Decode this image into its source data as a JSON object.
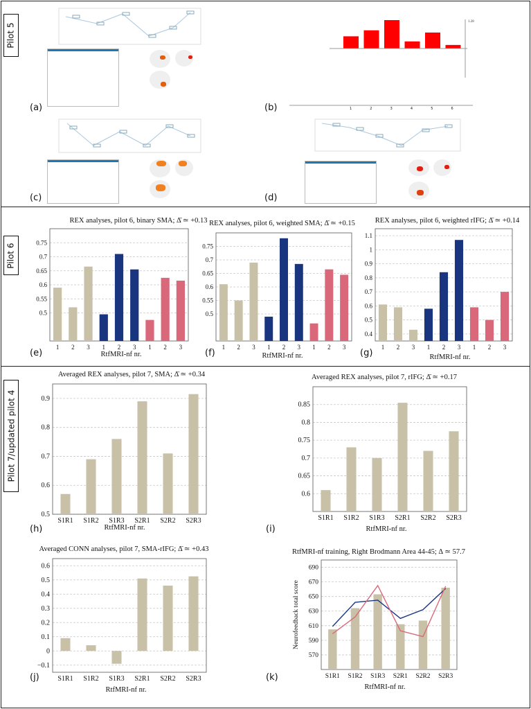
{
  "pilots": {
    "p5": "Pilot 5",
    "p6": "Pilot 6",
    "p7": "Pilot 7/updated pilot 4"
  },
  "letters": {
    "a": "(a)",
    "b": "(b)",
    "c": "(c)",
    "d": "(d)",
    "e": "(e)",
    "f": "(f)",
    "g": "(g)",
    "h": "(h)",
    "i": "(i)",
    "j": "(j)",
    "k": "(k)"
  },
  "colors": {
    "beige": "#c8c1a8",
    "navy": "#1a3580",
    "pink": "#d9687a",
    "red": "#ff0000",
    "grid": "#c8c8c8"
  },
  "chart_data": [
    {
      "id": "b",
      "type": "bar",
      "categories": [
        "1",
        "2",
        "3",
        "4",
        "5",
        "6"
      ],
      "values": [
        0.55,
        0.82,
        1.28,
        0.32,
        0.72,
        0.16
      ],
      "ylabel_tick": "1.28",
      "colors": [
        "red",
        "red",
        "red",
        "red",
        "red",
        "red"
      ]
    },
    {
      "id": "e",
      "type": "bar",
      "title": "REX analyses, pilot 6, binary SMA; Δ̄ ≃ +0.13",
      "xlabel": "RtfMRI-nf nr.",
      "categories": [
        "1",
        "2",
        "3",
        "1",
        "2",
        "3",
        "1",
        "2",
        "3"
      ],
      "values": [
        0.59,
        0.52,
        0.665,
        0.495,
        0.71,
        0.655,
        0.475,
        0.625,
        0.615
      ],
      "colors": [
        "beige",
        "beige",
        "beige",
        "navy",
        "navy",
        "navy",
        "pink",
        "pink",
        "pink"
      ],
      "ylim": [
        0.4,
        0.8
      ],
      "yticks": [
        0.5,
        0.55,
        0.6,
        0.65,
        0.7,
        0.75
      ],
      "ytick_labels": [
        "0.5",
        "0.55",
        "0.6",
        "0.65",
        "0.7",
        "0.75"
      ]
    },
    {
      "id": "f",
      "type": "bar",
      "title": "REX analyses, pilot 6, weighted SMA; Δ̄ ≃ +0.15",
      "xlabel": "RtfMRI-nf nr.",
      "categories": [
        "1",
        "2",
        "3",
        "1",
        "2",
        "3",
        "1",
        "2",
        "3"
      ],
      "values": [
        0.61,
        0.55,
        0.69,
        0.49,
        0.78,
        0.685,
        0.465,
        0.665,
        0.645
      ],
      "colors": [
        "beige",
        "beige",
        "beige",
        "navy",
        "navy",
        "navy",
        "pink",
        "pink",
        "pink"
      ],
      "ylim": [
        0.4,
        0.8
      ],
      "yticks": [
        0.5,
        0.55,
        0.6,
        0.65,
        0.7,
        0.75
      ],
      "ytick_labels": [
        "0.5",
        "0.55",
        "0.6",
        "0.65",
        "0.7",
        "0.75"
      ]
    },
    {
      "id": "g",
      "type": "bar",
      "title": "REX analyses, pilot 6, weighted rIFG; Δ̄ ≃ +0.14",
      "xlabel": "RtfMRI-nf nr.",
      "categories": [
        "1",
        "2",
        "3",
        "1",
        "2",
        "3",
        "1",
        "2",
        "3"
      ],
      "values": [
        0.61,
        0.59,
        0.43,
        0.58,
        0.84,
        1.07,
        0.59,
        0.5,
        0.7
      ],
      "colors": [
        "beige",
        "beige",
        "beige",
        "navy",
        "navy",
        "navy",
        "pink",
        "pink",
        "pink"
      ],
      "ylim": [
        0.35,
        1.15
      ],
      "yticks": [
        0.4,
        0.5,
        0.6,
        0.7,
        0.8,
        0.9,
        1.0,
        1.1
      ],
      "ytick_labels": [
        "0.4",
        "0.5",
        "0.6",
        "0.7",
        "0.8",
        "0.9",
        "1",
        "1.1"
      ]
    },
    {
      "id": "h",
      "type": "bar",
      "title": "Averaged REX analyses, pilot 7, SMA; Δ̄ ≃ +0.34",
      "xlabel": "RtfMRI-nf nr.",
      "categories": [
        "S1R1",
        "S1R2",
        "S1R3",
        "S2R1",
        "S2R2",
        "S2R3"
      ],
      "values": [
        0.57,
        0.69,
        0.76,
        0.89,
        0.71,
        0.915
      ],
      "colors": [
        "beige",
        "beige",
        "beige",
        "beige",
        "beige",
        "beige"
      ],
      "ylim": [
        0.5,
        0.95
      ],
      "yticks": [
        0.5,
        0.6,
        0.7,
        0.8,
        0.9
      ],
      "ytick_labels": [
        "0.5",
        "0.6",
        "0.7",
        "0.8",
        "0.9"
      ]
    },
    {
      "id": "i",
      "type": "bar",
      "title": "Averaged REX analyses, pilot 7, rIFG; Δ̄ ≃ +0.17",
      "xlabel": "RtfMRI-nf nr.",
      "categories": [
        "S1R1",
        "S1R2",
        "S1R3",
        "S2R1",
        "S2R2",
        "S2R3"
      ],
      "values": [
        0.61,
        0.73,
        0.7,
        0.855,
        0.72,
        0.775
      ],
      "colors": [
        "beige",
        "beige",
        "beige",
        "beige",
        "beige",
        "beige"
      ],
      "ylim": [
        0.55,
        0.9
      ],
      "yticks": [
        0.6,
        0.65,
        0.7,
        0.75,
        0.8,
        0.85
      ],
      "ytick_labels": [
        "0.6",
        "0.65",
        "0.7",
        "0.75",
        "0.8",
        "0.85"
      ]
    },
    {
      "id": "j",
      "type": "bar",
      "title": "Averaged CONN analyses, pilot 7, SMA-rIFG; Δ̄ ≃ +0.43",
      "xlabel": "RtfMRI-nf nr.",
      "categories": [
        "S1R1",
        "S1R2",
        "S1R3",
        "S2R1",
        "S2R2",
        "S2R3"
      ],
      "values": [
        0.09,
        0.04,
        -0.09,
        0.51,
        0.46,
        0.525
      ],
      "colors": [
        "beige",
        "beige",
        "beige",
        "beige",
        "beige",
        "beige"
      ],
      "ylim": [
        -0.15,
        0.65
      ],
      "yticks": [
        -0.1,
        0,
        0.1,
        0.2,
        0.3,
        0.4,
        0.5,
        0.6
      ],
      "ytick_labels": [
        "−0.1",
        "0",
        "0.1",
        "0.2",
        "0.3",
        "0.4",
        "0.5",
        "0.6"
      ]
    },
    {
      "id": "k",
      "type": "bar",
      "title": "RtfMRI-nf training, Right Brodmann Area 44-45; Δ ≃ 57.7",
      "xlabel": "RtfMRI-nf nr.",
      "ylabel": "Neurofeedback total score",
      "categories": [
        "S1R1",
        "S1R2",
        "S1R3",
        "S2R1",
        "S2R2",
        "S2R3"
      ],
      "values": [
        605,
        634,
        653,
        612,
        617,
        662
      ],
      "colors": [
        "beige",
        "beige",
        "beige",
        "beige",
        "beige",
        "beige"
      ],
      "ylim": [
        550,
        700
      ],
      "yticks": [
        570,
        590,
        610,
        630,
        650,
        670,
        690
      ],
      "ytick_labels": [
        "570",
        "590",
        "610",
        "630",
        "650",
        "670",
        "690"
      ],
      "series": [
        {
          "name": "navy-line",
          "color": "navy",
          "values": [
            609,
            642,
            645,
            620,
            632,
            661
          ]
        },
        {
          "name": "pink-line",
          "color": "pink",
          "values": [
            599,
            622,
            665,
            603,
            595,
            664
          ]
        }
      ]
    }
  ]
}
